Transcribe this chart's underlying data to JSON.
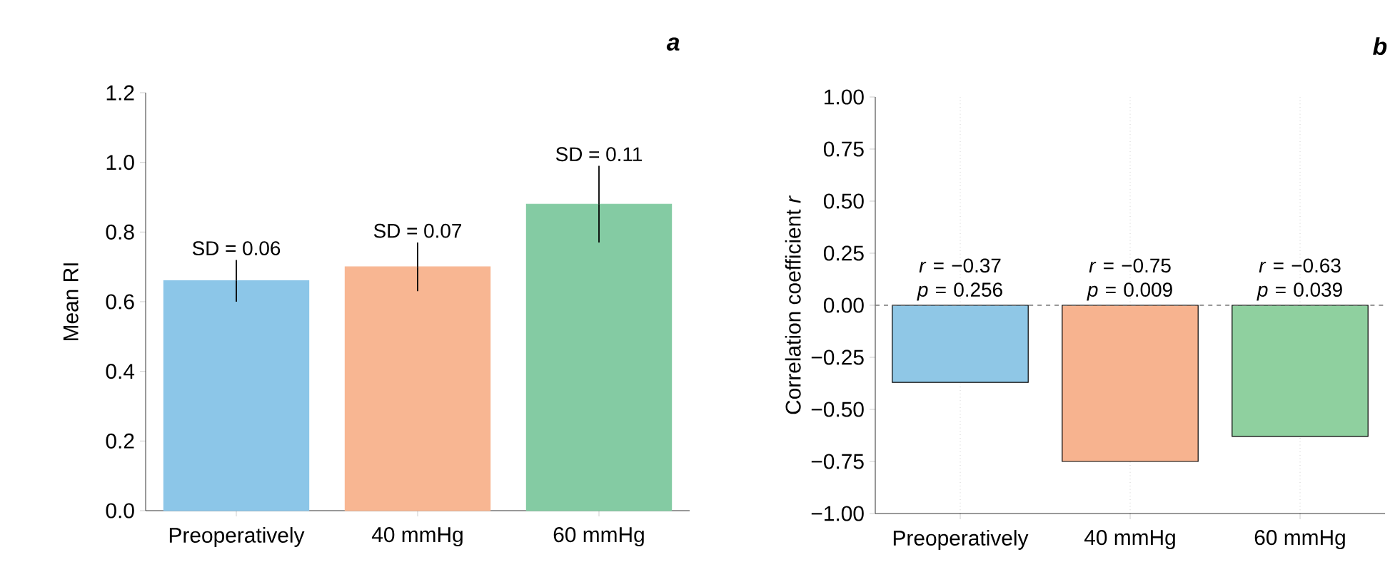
{
  "chart_data": [
    {
      "type": "bar",
      "title": "a",
      "ylabel": "Mean RI",
      "categories": [
        "Preoperatively",
        "40 mmHg",
        "60 mmHg"
      ],
      "values": [
        0.66,
        0.7,
        0.88
      ],
      "colors": [
        "#8cc6e8",
        "#f8b692",
        "#84cba3"
      ],
      "errors": [
        0.06,
        0.07,
        0.11
      ],
      "ylim": [
        0,
        1.2
      ],
      "annotations": [
        {
          "text": "SD = 0.06",
          "x": "Preoperatively",
          "y": 0.72
        },
        {
          "text": "SD = 0.07",
          "x": "40 mmHg",
          "y": 0.77
        },
        {
          "text": "SD = 0.11",
          "x": "60 mmHg",
          "y": 0.99
        }
      ],
      "yticks": [
        {
          "value": 0,
          "label": "0.0"
        },
        0.2,
        0.4,
        0.6,
        0.8,
        {
          "value": 1,
          "label": "1.0"
        },
        1.2
      ],
      "grid": false
    },
    {
      "type": "bar",
      "title": "b",
      "ylabel": "Correlation coefficient *r*",
      "categories": [
        "Preoperatively",
        "40 mmHg",
        "60 mmHg"
      ],
      "values": [
        -0.37,
        -0.75,
        -0.63
      ],
      "colors": [
        "#8fc7e6",
        "#f7b38f",
        "#8fd09f"
      ],
      "value_labels": [
        "*r* = −0.37 *p* = 0.256",
        "*r* = −0.75 *p* = 0.009",
        "*r* = −0.63 *p* = 0.039"
      ],
      "ylim": [
        -1,
        1
      ],
      "yticks": [
        {
          "value": -1,
          "label": "−1.00"
        },
        {
          "value": -0.75,
          "label": "−0.75"
        },
        {
          "value": -0.5,
          "label": "−0.50"
        },
        {
          "value": -0.25,
          "label": "−0.25"
        },
        {
          "value": 0,
          "label": "0.00"
        },
        {
          "value": 0.25,
          "label": "0.25"
        },
        {
          "value": 0.5,
          "label": "0.50"
        },
        {
          "value": 0.75,
          "label": "0.75"
        },
        {
          "value": 1,
          "label": "1.00"
        }
      ],
      "grid": "x",
      "ref_lines": [
        {
          "axis": "y",
          "value": 0,
          "line_style": "dashed",
          "color": "#777777"
        }
      ]
    }
  ]
}
